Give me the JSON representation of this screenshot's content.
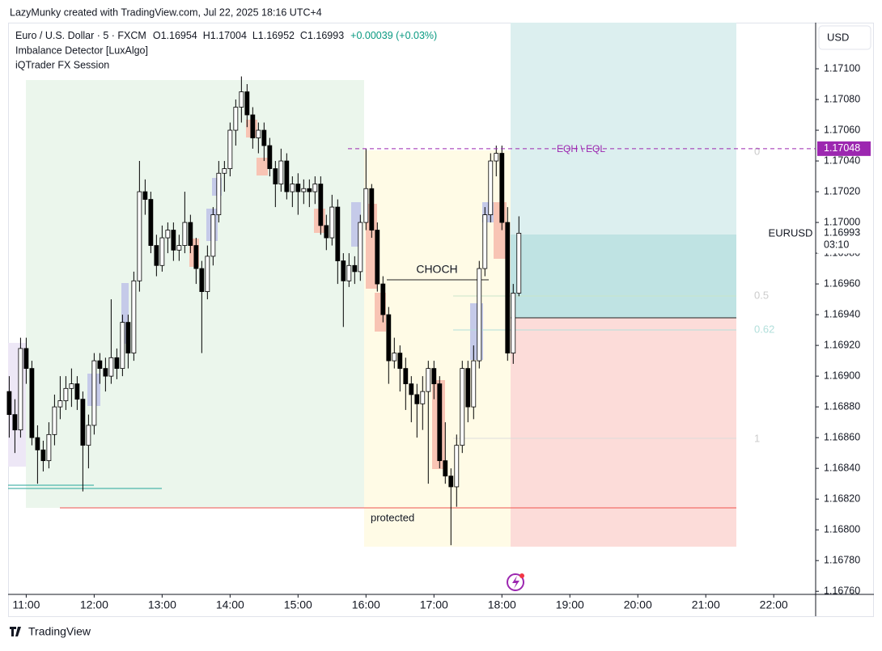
{
  "header": {
    "credit": "LazyMunky created with TradingView.com, Jul 22, 2025 18:16 UTC+4",
    "brand": "TradingView"
  },
  "chart_data": {
    "type": "candlestick",
    "legend": {
      "symbol": "Euro / U.S. Dollar · 5 · FXCM",
      "ohlc": "O1.16954  H1.17004  L1.16952  C1.16993",
      "change": "+0.00039 (+0.03%)",
      "indicators": [
        "Imbalance Detector [LuxAlgo]",
        "iQTrader FX Session"
      ]
    },
    "currency": "USD",
    "symbol_tag": "EURUSD",
    "last_price": {
      "value": 1.16993,
      "label": "1.16993",
      "countdown": "03:10"
    },
    "level_tag": {
      "value": 1.17048,
      "label": "1.17048",
      "color": "#9c27b0"
    },
    "annotations": {
      "choch": "CHOCH",
      "protected": "protected",
      "eq": "EQH \\ EQL",
      "fib": [
        "0",
        "0.5",
        "0.62",
        "1"
      ]
    },
    "up_color": "#ffffff",
    "down_color": "#000000",
    "xlim": [
      644,
      1357
    ],
    "xticks": [
      {
        "value": 660,
        "label": "11:00"
      },
      {
        "value": 720,
        "label": "12:00"
      },
      {
        "value": 780,
        "label": "13:00"
      },
      {
        "value": 840,
        "label": "14:00"
      },
      {
        "value": 900,
        "label": "15:00"
      },
      {
        "value": 960,
        "label": "16:00"
      },
      {
        "value": 1020,
        "label": "17:00"
      },
      {
        "value": 1080,
        "label": "18:00"
      },
      {
        "value": 1140,
        "label": "19:00"
      },
      {
        "value": 1200,
        "label": "20:00"
      },
      {
        "value": 1260,
        "label": "21:00"
      },
      {
        "value": 1320,
        "label": "22:00"
      }
    ],
    "ylim": [
      1.16758,
      1.1713
    ],
    "yticks": [
      {
        "value": 1.1676,
        "label": "1.16760"
      },
      {
        "value": 1.1678,
        "label": "1.16780"
      },
      {
        "value": 1.168,
        "label": "1.16800"
      },
      {
        "value": 1.1682,
        "label": "1.16820"
      },
      {
        "value": 1.1684,
        "label": "1.16840"
      },
      {
        "value": 1.1686,
        "label": "1.16860"
      },
      {
        "value": 1.1688,
        "label": "1.16880"
      },
      {
        "value": 1.169,
        "label": "1.16900"
      },
      {
        "value": 1.1692,
        "label": "1.16920"
      },
      {
        "value": 1.1694,
        "label": "1.16940"
      },
      {
        "value": 1.1696,
        "label": "1.16960"
      },
      {
        "value": 1.1698,
        "label": "1.16980"
      },
      {
        "value": 1.17,
        "label": "1.17000"
      },
      {
        "value": 1.1702,
        "label": "1.17020"
      },
      {
        "value": 1.1704,
        "label": "1.17040"
      },
      {
        "value": 1.1706,
        "label": "1.17060"
      },
      {
        "value": 1.1708,
        "label": "1.17080"
      },
      {
        "value": 1.171,
        "label": "1.17100"
      }
    ],
    "x": [
      645,
      650,
      655,
      660,
      665,
      670,
      675,
      680,
      685,
      690,
      695,
      700,
      705,
      710,
      715,
      720,
      725,
      730,
      735,
      740,
      745,
      750,
      755,
      760,
      765,
      770,
      775,
      780,
      785,
      790,
      795,
      800,
      805,
      810,
      815,
      820,
      825,
      830,
      835,
      840,
      845,
      850,
      855,
      860,
      865,
      870,
      875,
      880,
      885,
      890,
      895,
      900,
      905,
      910,
      915,
      920,
      925,
      930,
      935,
      940,
      945,
      950,
      955,
      960,
      965,
      970,
      975,
      980,
      985,
      990,
      995,
      1000,
      1005,
      1010,
      1015,
      1020,
      1025,
      1030,
      1035,
      1040,
      1045,
      1050,
      1055,
      1060,
      1065,
      1070,
      1075,
      1080,
      1085,
      1090,
      1095
    ],
    "candles": [
      [
        1.1689,
        1.169,
        1.1686,
        1.16875
      ],
      [
        1.16875,
        1.16885,
        1.1685,
        1.16865
      ],
      [
        1.16865,
        1.16925,
        1.1686,
        1.16918
      ],
      [
        1.16918,
        1.16925,
        1.16895,
        1.16905
      ],
      [
        1.16905,
        1.1691,
        1.16855,
        1.1686
      ],
      [
        1.1686,
        1.16868,
        1.1683,
        1.16852
      ],
      [
        1.16852,
        1.16858,
        1.16838,
        1.16845
      ],
      [
        1.16845,
        1.1687,
        1.1684,
        1.16862
      ],
      [
        1.16862,
        1.16888,
        1.16855,
        1.1688
      ],
      [
        1.1688,
        1.169,
        1.16872,
        1.16884
      ],
      [
        1.16884,
        1.169,
        1.16878,
        1.16892
      ],
      [
        1.16892,
        1.16905,
        1.1688,
        1.16895
      ],
      [
        1.16895,
        1.169,
        1.16878,
        1.16885
      ],
      [
        1.16885,
        1.1689,
        1.16825,
        1.16855
      ],
      [
        1.16855,
        1.16875,
        1.1684,
        1.16868
      ],
      [
        1.16868,
        1.16915,
        1.16862,
        1.1691
      ],
      [
        1.1691,
        1.16915,
        1.16895,
        1.16905
      ],
      [
        1.16905,
        1.16912,
        1.1689,
        1.169
      ],
      [
        1.169,
        1.1695,
        1.16895,
        1.16912
      ],
      [
        1.16912,
        1.16918,
        1.16898,
        1.16905
      ],
      [
        1.16905,
        1.1694,
        1.169,
        1.16935
      ],
      [
        1.16935,
        1.1694,
        1.16905,
        1.16915
      ],
      [
        1.16915,
        1.16968,
        1.1691,
        1.16962
      ],
      [
        1.16962,
        1.1704,
        1.16955,
        1.1702
      ],
      [
        1.1702,
        1.17028,
        1.17005,
        1.17015
      ],
      [
        1.17015,
        1.1702,
        1.1698,
        1.16985
      ],
      [
        1.16985,
        1.16992,
        1.16965,
        1.16972
      ],
      [
        1.16972,
        1.16998,
        1.16968,
        1.1699
      ],
      [
        1.1699,
        1.17,
        1.1698,
        1.16995
      ],
      [
        1.16995,
        1.17,
        1.16975,
        1.16982
      ],
      [
        1.16982,
        1.16992,
        1.16975,
        1.16985
      ],
      [
        1.16985,
        1.1702,
        1.1698,
        1.17
      ],
      [
        1.17,
        1.17005,
        1.1698,
        1.16985
      ],
      [
        1.16985,
        1.1699,
        1.1696,
        1.1697
      ],
      [
        1.1697,
        1.16975,
        1.16915,
        1.16955
      ],
      [
        1.16955,
        1.16985,
        1.1695,
        1.16978
      ],
      [
        1.16978,
        1.1701,
        1.16972,
        1.17005
      ],
      [
        1.17005,
        1.1704,
        1.17,
        1.17032
      ],
      [
        1.17032,
        1.1704,
        1.1702,
        1.17035
      ],
      [
        1.17035,
        1.17065,
        1.1703,
        1.1706
      ],
      [
        1.1706,
        1.1708,
        1.1705,
        1.17075
      ],
      [
        1.17075,
        1.17095,
        1.17065,
        1.17085
      ],
      [
        1.17085,
        1.1709,
        1.17062,
        1.1707
      ],
      [
        1.1707,
        1.17075,
        1.17048,
        1.17055
      ],
      [
        1.17055,
        1.17065,
        1.17045,
        1.1706
      ],
      [
        1.1706,
        1.17065,
        1.1704,
        1.1705
      ],
      [
        1.1705,
        1.17055,
        1.1703,
        1.17035
      ],
      [
        1.17035,
        1.1704,
        1.1701,
        1.17025
      ],
      [
        1.17025,
        1.17048,
        1.1702,
        1.1704
      ],
      [
        1.1704,
        1.17045,
        1.17015,
        1.1702
      ],
      [
        1.1702,
        1.1703,
        1.1701,
        1.17025
      ],
      [
        1.17025,
        1.17032,
        1.17005,
        1.1702
      ],
      [
        1.1702,
        1.17028,
        1.17012,
        1.17022
      ],
      [
        1.17022,
        1.17028,
        1.1701,
        1.1702
      ],
      [
        1.1702,
        1.1703,
        1.17012,
        1.17025
      ],
      [
        1.17025,
        1.1703,
        1.16992,
        1.16998
      ],
      [
        1.16998,
        1.17005,
        1.16982,
        1.1699
      ],
      [
        1.1699,
        1.17018,
        1.16985,
        1.1701
      ],
      [
        1.1701,
        1.17015,
        1.1696,
        1.16975
      ],
      [
        1.16975,
        1.1698,
        1.16932,
        1.16962
      ],
      [
        1.16962,
        1.1698,
        1.16958,
        1.16972
      ],
      [
        1.16972,
        1.16978,
        1.1696,
        1.16968
      ],
      [
        1.16968,
        1.17005,
        1.16962,
        1.17
      ],
      [
        1.17,
        1.17048,
        1.16995,
        1.17022
      ],
      [
        1.17022,
        1.17025,
        1.1699,
        1.16995
      ],
      [
        1.16995,
        1.17,
        1.16955,
        1.1696
      ],
      [
        1.1696,
        1.16965,
        1.16935,
        1.1694
      ],
      [
        1.1694,
        1.16945,
        1.16895,
        1.1691
      ],
      [
        1.1691,
        1.16925,
        1.16905,
        1.16915
      ],
      [
        1.16915,
        1.1692,
        1.1689,
        1.16905
      ],
      [
        1.16905,
        1.16912,
        1.16878,
        1.16895
      ],
      [
        1.16895,
        1.169,
        1.1687,
        1.16888
      ],
      [
        1.16888,
        1.16895,
        1.1686,
        1.16882
      ],
      [
        1.16882,
        1.169,
        1.16865,
        1.1689
      ],
      [
        1.1689,
        1.1691,
        1.1683,
        1.16905
      ],
      [
        1.16905,
        1.1691,
        1.16885,
        1.16895
      ],
      [
        1.16895,
        1.169,
        1.1684,
        1.16845
      ],
      [
        1.16845,
        1.1687,
        1.1683,
        1.16835
      ],
      [
        1.16835,
        1.1684,
        1.1679,
        1.16828
      ],
      [
        1.16828,
        1.16862,
        1.16815,
        1.16855
      ],
      [
        1.16855,
        1.1691,
        1.1685,
        1.16905
      ],
      [
        1.16905,
        1.1691,
        1.1687,
        1.1688
      ],
      [
        1.1688,
        1.1692,
        1.16872,
        1.1691
      ],
      [
        1.1691,
        1.16975,
        1.16905,
        1.1697
      ],
      [
        1.1697,
        1.1701,
        1.16965,
        1.17005
      ],
      [
        1.17005,
        1.17045,
        1.17,
        1.1704
      ],
      [
        1.1704,
        1.1705,
        1.1703,
        1.17045
      ],
      [
        1.17045,
        1.1705,
        1.16995,
        1.17
      ],
      [
        1.17,
        1.1701,
        1.1691,
        1.16915
      ],
      [
        1.16915,
        1.1696,
        1.16908,
        1.16954
      ],
      [
        1.16954,
        1.17004,
        1.16952,
        1.16993
      ]
    ]
  }
}
